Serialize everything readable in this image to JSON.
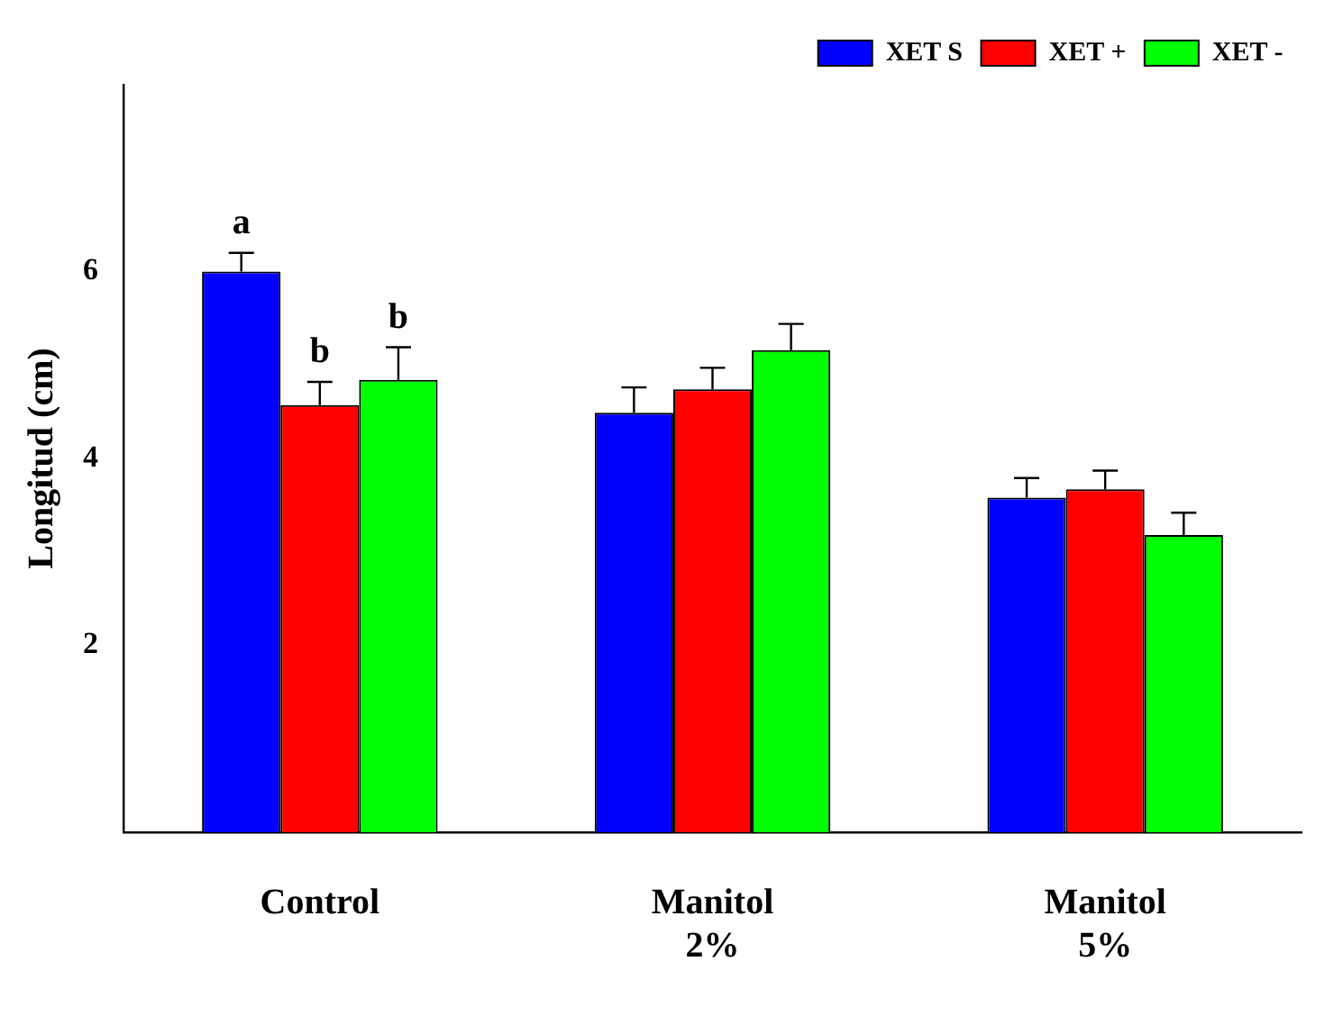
{
  "chart_data": {
    "type": "bar",
    "ylabel": "Longitud (cm)",
    "categories": [
      "Control",
      "Manitol 2%",
      "Manitol 5%"
    ],
    "series": [
      {
        "name": "XET S",
        "color": "#0000ff",
        "values": [
          6.0,
          4.49,
          3.58
        ],
        "errors": [
          [
            6.0,
            6.2
          ],
          [
            4.49,
            4.76
          ],
          [
            3.58,
            3.79
          ]
        ]
      },
      {
        "name": "XET +",
        "color": "#ff0000",
        "values": [
          4.57,
          4.74,
          3.67
        ],
        "errors": [
          [
            4.57,
            4.82
          ],
          [
            4.74,
            4.97
          ],
          [
            3.67,
            3.87
          ]
        ]
      },
      {
        "name": "XET -",
        "color": "#00ff00",
        "values": [
          4.84,
          5.16,
          3.18
        ],
        "errors": [
          [
            4.84,
            5.19
          ],
          [
            5.16,
            5.44
          ],
          [
            3.18,
            3.42
          ]
        ]
      }
    ],
    "ylim": [
      0,
      8
    ],
    "yticks": [
      2,
      4,
      6
    ],
    "grid": false,
    "legend": "top right",
    "annotations": [
      "a",
      "b",
      "b"
    ]
  }
}
